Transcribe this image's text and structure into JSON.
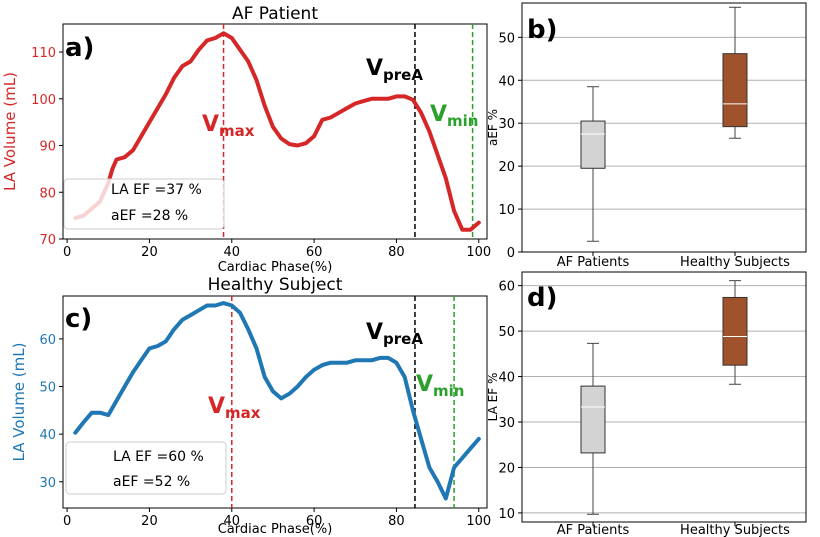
{
  "chart_data": [
    {
      "panel": "a)",
      "type": "line",
      "title": "AF Patient",
      "xlabel": "Cardiac Phase(%)",
      "ylabel": "LA Volume (mL)",
      "xlim": [
        -1,
        102
      ],
      "ylim": [
        70,
        116
      ],
      "xticks": [
        0,
        20,
        40,
        60,
        80,
        100
      ],
      "yticks": [
        70,
        80,
        90,
        100,
        110
      ],
      "line_color": "#d62728",
      "x": [
        2,
        4,
        6,
        8,
        10,
        11,
        12,
        14,
        16,
        18,
        20,
        22,
        24,
        26,
        28,
        30,
        32,
        34,
        36,
        38,
        40,
        42,
        44,
        46,
        48,
        50,
        52,
        54,
        56,
        58,
        60,
        62,
        64,
        66,
        68,
        70,
        72,
        74,
        76,
        78,
        80,
        82,
        84,
        86,
        88,
        90,
        92,
        94,
        96,
        98,
        100
      ],
      "y": [
        74.5,
        75,
        76.5,
        78,
        82,
        85,
        87,
        87.5,
        89,
        92,
        95,
        98,
        101,
        104.5,
        107,
        108,
        110.5,
        112.5,
        113,
        114,
        113,
        110.5,
        108,
        104,
        98.5,
        94,
        91.5,
        90.3,
        90,
        90.5,
        92,
        95.5,
        96,
        97,
        98,
        99,
        99.5,
        100,
        100,
        100,
        100.5,
        100.5,
        99.8,
        97,
        93,
        88,
        83,
        76,
        72,
        72,
        73.5
      ],
      "markers": [
        {
          "label": "Vmax",
          "sub": "max",
          "x": 38,
          "color": "#d62728"
        },
        {
          "label": "VpreA",
          "sub": "preA",
          "x": 84.5,
          "color": "#000000"
        },
        {
          "label": "Vmin",
          "sub": "min",
          "x": 98.5,
          "color": "#2ca02c"
        }
      ],
      "legend_lines": [
        "LA EF =37 %",
        "aEF =28 %"
      ]
    },
    {
      "panel": "c)",
      "type": "line",
      "title": "Healthy Subject",
      "xlabel": "Cardiac Phase(%)",
      "ylabel": "LA Volume (mL)",
      "xlim": [
        -1,
        102
      ],
      "ylim": [
        24.5,
        69
      ],
      "xticks": [
        0,
        20,
        40,
        60,
        80,
        100
      ],
      "yticks": [
        30,
        40,
        50,
        60
      ],
      "line_color": "#1f77b4",
      "x": [
        2,
        4,
        6,
        8,
        10,
        12,
        14,
        16,
        18,
        20,
        22,
        24,
        26,
        28,
        30,
        32,
        34,
        36,
        38,
        40,
        42,
        44,
        46,
        48,
        50,
        52,
        54,
        56,
        58,
        60,
        62,
        64,
        66,
        68,
        70,
        72,
        74,
        76,
        78,
        80,
        82,
        84,
        86,
        88,
        90,
        92,
        94,
        96,
        98,
        100
      ],
      "y": [
        40.3,
        42.5,
        44.5,
        44.5,
        44,
        47,
        50,
        53,
        55.5,
        58,
        58.5,
        59.5,
        62,
        64,
        65,
        66,
        67,
        67,
        67.5,
        67,
        65.5,
        62,
        58,
        52,
        49,
        47.5,
        48.5,
        50,
        52,
        53.5,
        54.5,
        55,
        55,
        55,
        55.5,
        55.5,
        55.5,
        56,
        56,
        55,
        52,
        45,
        39,
        33,
        30,
        26.5,
        33,
        35,
        37,
        39
      ],
      "markers": [
        {
          "label": "Vmax",
          "sub": "max",
          "x": 40,
          "color": "#d62728"
        },
        {
          "label": "VpreA",
          "sub": "preA",
          "x": 84.5,
          "color": "#000000"
        },
        {
          "label": "Vmin",
          "sub": "min",
          "x": 94,
          "color": "#2ca02c"
        }
      ],
      "legend_lines": [
        "LA EF =60 %",
        "aEF =52 %"
      ]
    },
    {
      "panel": "b)",
      "type": "box",
      "ylabel": "aEF %",
      "categories": [
        "AF Patients",
        "Healthy Subjects"
      ],
      "ylim": [
        0,
        58
      ],
      "yticks": [
        0,
        10,
        20,
        30,
        40,
        50
      ],
      "boxes": [
        {
          "name": "AF Patients",
          "min": 2.5,
          "q1": 19.5,
          "median": 27.5,
          "q3": 30.5,
          "max": 38.5,
          "color": "#d3d3d3"
        },
        {
          "name": "Healthy Subjects",
          "min": 26.5,
          "q1": 29.2,
          "median": 34.5,
          "q3": 46.2,
          "max": 57,
          "color": "#a0522d"
        }
      ]
    },
    {
      "panel": "d)",
      "type": "box",
      "ylabel": "LA EF %",
      "categories": [
        "AF Patients",
        "Healthy Subjects"
      ],
      "ylim": [
        8,
        63
      ],
      "yticks": [
        10,
        20,
        30,
        40,
        50,
        60
      ],
      "boxes": [
        {
          "name": "AF Patients",
          "min": 9.7,
          "q1": 23.2,
          "median": 33.3,
          "q3": 37.9,
          "max": 47.3,
          "color": "#d3d3d3"
        },
        {
          "name": "Healthy Subjects",
          "min": 38.3,
          "q1": 42.5,
          "median": 48.8,
          "q3": 57.4,
          "max": 61.1,
          "color": "#a0522d"
        }
      ]
    }
  ]
}
